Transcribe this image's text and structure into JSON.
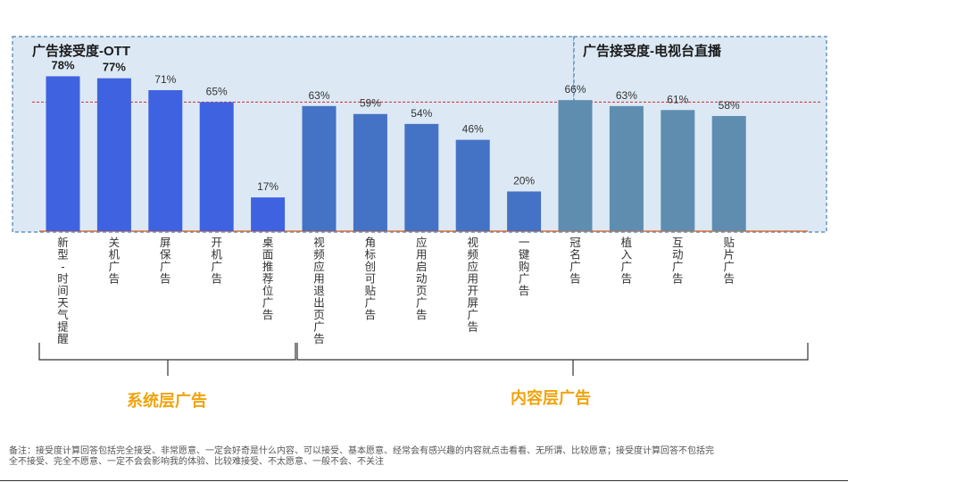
{
  "panels": [
    {
      "title": "广告接受度-OTT"
    },
    {
      "title": "广告接受度-电视台直播"
    }
  ],
  "groups": [
    {
      "label": "系统层广告"
    },
    {
      "label": "内容层广告"
    }
  ],
  "footnote": {
    "text": "备注：接受度计算回答包括完全接受、非常愿意、一定会好奇是什么内容、可以接受、基本愿意、经常会有感兴趣的内容就点击看看、无所谓、比较愿意；接受度计算回答不包括完全不接受、完全不愿意、一定不会会影响我的体验、比较难接受、不太愿意、一般不会、不关注"
  },
  "colors": {
    "system": "#3f63e0",
    "content": "#4472c4",
    "tv": "#5f8db0",
    "panel_bg": "#dce9f5",
    "panel_border": "#4a7fb5",
    "ref_line": "#d9262c",
    "baseline": "#e0743a",
    "group_label": "#f0a30a"
  },
  "chart_data": {
    "type": "bar",
    "ylim": [
      0,
      100
    ],
    "reference_line": 65,
    "categories": [
      "新型-时间天气提醒",
      "关机广告",
      "屏保广告",
      "开机广告",
      "桌面推荐位广告",
      "视频应用退出页广告",
      "角标创可贴广告",
      "应用启动页广告",
      "视频应用开屏广告",
      "一键购广告",
      "冠名广告",
      "植入广告",
      "互动广告",
      "贴片广告"
    ],
    "values": [
      78,
      77,
      71,
      65,
      17,
      63,
      59,
      54,
      46,
      20,
      66,
      63,
      61,
      58
    ],
    "labels": [
      "78%",
      "77%",
      "71%",
      "65%",
      "17%",
      "63%",
      "59%",
      "54%",
      "46%",
      "20%",
      "66%",
      "63%",
      "61%",
      "58%"
    ],
    "bar_group": [
      "system",
      "system",
      "system",
      "system",
      "system",
      "content",
      "content",
      "content",
      "content",
      "content",
      "tv",
      "tv",
      "tv",
      "tv"
    ]
  }
}
